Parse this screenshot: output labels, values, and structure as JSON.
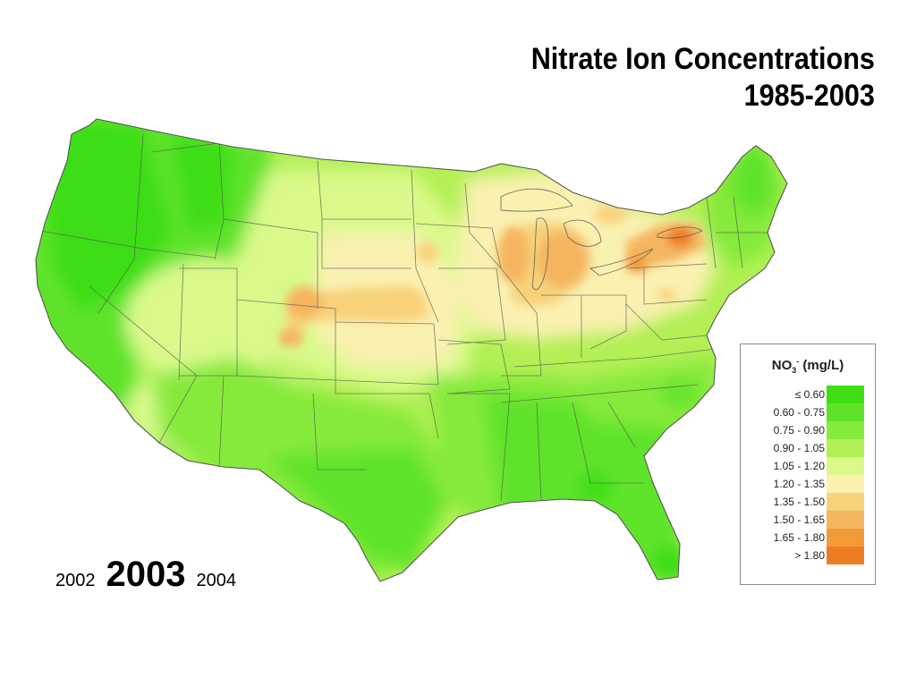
{
  "title": {
    "line1": "Nitrate Ion Concentrations",
    "line2": "1985-2003"
  },
  "timeline": {
    "prev": "2002",
    "current": "2003",
    "next": "2004"
  },
  "legend": {
    "species": "NO",
    "subscript": "3",
    "superscript": "-",
    "unit": "(mg/L)",
    "bins": [
      {
        "label": "≤ 0.60",
        "color": "#3ede12"
      },
      {
        "label": "0.60 - 0.75",
        "color": "#5ee32a"
      },
      {
        "label": "0.75 - 0.90",
        "color": "#86ea3a"
      },
      {
        "label": "0.90 - 1.05",
        "color": "#b2f055"
      },
      {
        "label": "1.05 - 1.20",
        "color": "#d9f98a"
      },
      {
        "label": "1.20 - 1.35",
        "color": "#faf0b0"
      },
      {
        "label": "1.35 - 1.50",
        "color": "#f8d27a"
      },
      {
        "label": "1.50 - 1.65",
        "color": "#f5b560"
      },
      {
        "label": "1.65 - 1.80",
        "color": "#f39a38"
      },
      {
        "label": "> 1.80",
        "color": "#ee7d22"
      }
    ]
  }
}
